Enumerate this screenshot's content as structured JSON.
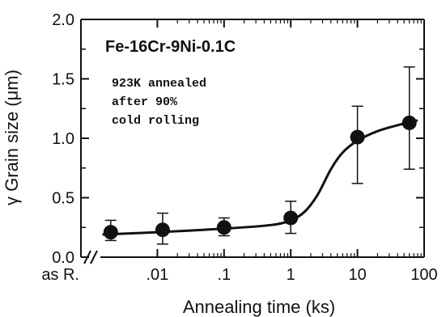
{
  "chart_data": {
    "type": "scatter",
    "title": "Fe-16Cr-9Ni-0.1C",
    "annotation_lines": [
      "923K annealed",
      "after 90%",
      "cold rolling"
    ],
    "xlabel": "Annealing time  (ks)",
    "ylabel": "γ Grain size  (μm)",
    "x_scale": "log",
    "x_ticks": [
      {
        "label": "as R.",
        "value": 0.001
      },
      {
        "label": ".01",
        "value": 0.01
      },
      {
        "label": ".1",
        "value": 0.1
      },
      {
        "label": "1",
        "value": 1
      },
      {
        "label": "10",
        "value": 10
      },
      {
        "label": "100",
        "value": 100
      }
    ],
    "y_ticks": [
      {
        "label": "0.0",
        "value": 0.0
      },
      {
        "label": "0.5",
        "value": 0.5
      },
      {
        "label": "1.0",
        "value": 1.0
      },
      {
        "label": "1.5",
        "value": 1.5
      },
      {
        "label": "2.0",
        "value": 2.0
      }
    ],
    "ylim": [
      0,
      2.0
    ],
    "axis_break": true,
    "grid": false,
    "points": [
      {
        "x": 0.002,
        "y": 0.21,
        "err_low": 0.14,
        "err_high": 0.31
      },
      {
        "x": 0.012,
        "y": 0.23,
        "err_low": 0.11,
        "err_high": 0.37
      },
      {
        "x": 0.1,
        "y": 0.25,
        "err_low": 0.18,
        "err_high": 0.33
      },
      {
        "x": 1,
        "y": 0.33,
        "err_low": 0.2,
        "err_high": 0.47
      },
      {
        "x": 10,
        "y": 1.01,
        "err_low": 0.62,
        "err_high": 1.27
      },
      {
        "x": 60,
        "y": 1.13,
        "err_low": 0.74,
        "err_high": 1.6
      }
    ],
    "fit_curve": {
      "x": [
        0.0015,
        0.01,
        0.1,
        0.5,
        1,
        1.6,
        2.5,
        4,
        6,
        10,
        20,
        40,
        80
      ],
      "y": [
        0.19,
        0.21,
        0.24,
        0.27,
        0.31,
        0.38,
        0.52,
        0.74,
        0.88,
        0.98,
        1.06,
        1.11,
        1.15
      ]
    }
  }
}
